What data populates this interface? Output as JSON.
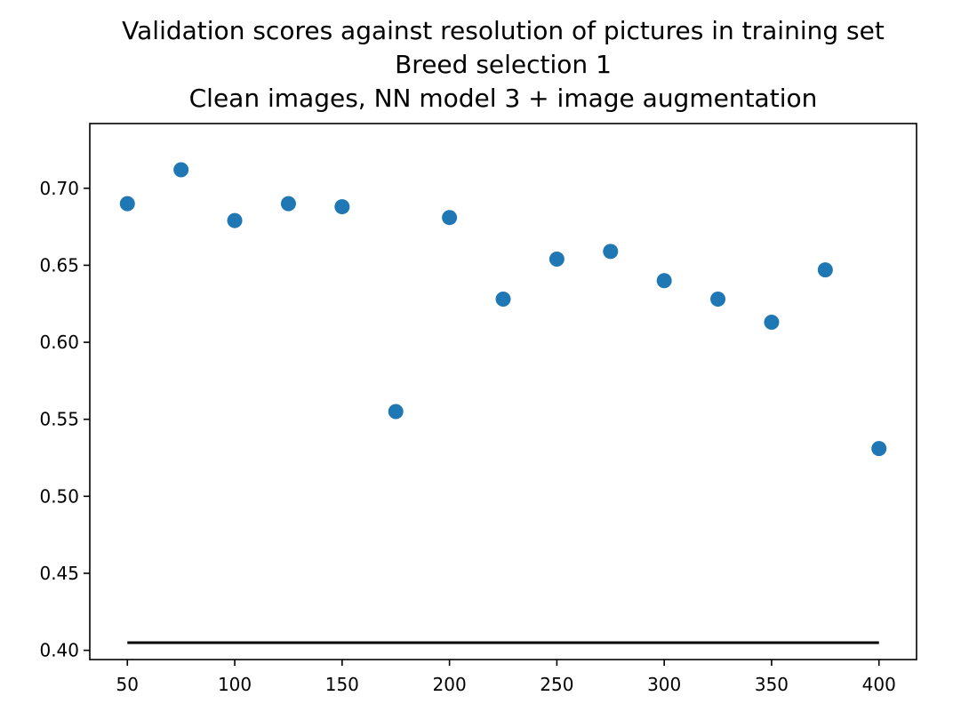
{
  "chart_data": {
    "type": "scatter",
    "title_lines": [
      "Validation scores against resolution of pictures in training set",
      "Breed selection 1",
      "Clean images, NN model 3 + image augmentation"
    ],
    "xlabel": "",
    "ylabel": "",
    "xlim": [
      32.5,
      417.5
    ],
    "ylim": [
      0.394,
      0.742
    ],
    "x_ticks": [
      50,
      100,
      150,
      200,
      250,
      300,
      350,
      400
    ],
    "x_tick_labels": [
      "50",
      "100",
      "150",
      "200",
      "250",
      "300",
      "350",
      "400"
    ],
    "y_ticks": [
      0.4,
      0.45,
      0.5,
      0.55,
      0.6,
      0.65,
      0.7
    ],
    "y_tick_labels": [
      "0.40",
      "0.45",
      "0.50",
      "0.55",
      "0.60",
      "0.65",
      "0.70"
    ],
    "grid": false,
    "series": [
      {
        "type": "scatter",
        "color": "#1f77b4",
        "x": [
          50,
          75,
          100,
          125,
          150,
          175,
          200,
          225,
          250,
          275,
          300,
          325,
          350,
          375,
          400
        ],
        "y": [
          0.69,
          0.712,
          0.679,
          0.69,
          0.688,
          0.555,
          0.681,
          0.628,
          0.654,
          0.659,
          0.64,
          0.628,
          0.613,
          0.647,
          0.531
        ]
      },
      {
        "type": "line",
        "color": "#000000",
        "x": [
          50,
          400
        ],
        "y": [
          0.405,
          0.405
        ]
      }
    ]
  }
}
